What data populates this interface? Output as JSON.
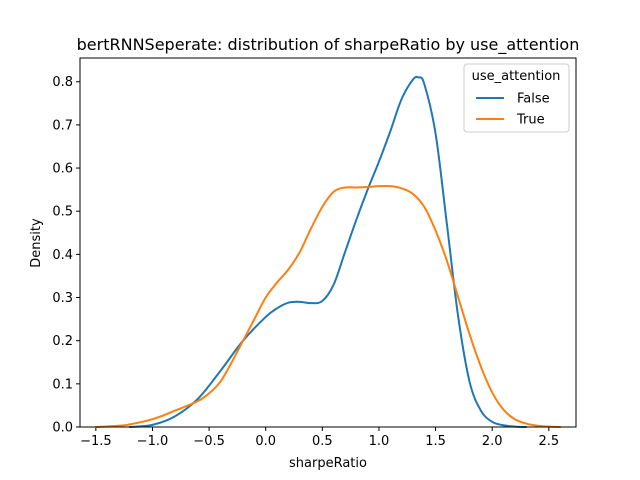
{
  "chart_data": {
    "type": "line",
    "title": "bertRNNSeperate: distribution of sharpeRatio by use_attention",
    "xlabel": "sharpeRatio",
    "ylabel": "Density",
    "xlim": [
      -1.64,
      2.74
    ],
    "ylim": [
      0,
      0.855
    ],
    "x_ticks": [
      -1.5,
      -1.0,
      -0.5,
      0.0,
      0.5,
      1.0,
      1.5,
      2.0,
      2.5
    ],
    "x_tick_labels": [
      "−1.5",
      "−1.0",
      "−0.5",
      "0.0",
      "0.5",
      "1.0",
      "1.5",
      "2.0",
      "2.5"
    ],
    "y_ticks": [
      0.0,
      0.1,
      0.2,
      0.3,
      0.4,
      0.5,
      0.6,
      0.7,
      0.8
    ],
    "y_tick_labels": [
      "0.0",
      "0.1",
      "0.2",
      "0.3",
      "0.4",
      "0.5",
      "0.6",
      "0.7",
      "0.8"
    ],
    "grid": false,
    "legend": {
      "title": "use_attention",
      "placement": "top-right"
    },
    "series": [
      {
        "name": "False",
        "color": "#1f77b4",
        "x": [
          -1.2,
          -1.0,
          -0.8,
          -0.6,
          -0.4,
          -0.2,
          0.0,
          0.1,
          0.2,
          0.3,
          0.4,
          0.5,
          0.6,
          0.7,
          0.8,
          0.9,
          1.0,
          1.1,
          1.2,
          1.3,
          1.35,
          1.4,
          1.5,
          1.6,
          1.7,
          1.8,
          1.9,
          2.0,
          2.1,
          2.2,
          2.3
        ],
        "y": [
          0.0,
          0.005,
          0.025,
          0.065,
          0.13,
          0.2,
          0.255,
          0.275,
          0.288,
          0.29,
          0.287,
          0.292,
          0.33,
          0.405,
          0.48,
          0.55,
          0.615,
          0.685,
          0.76,
          0.805,
          0.81,
          0.795,
          0.68,
          0.47,
          0.255,
          0.105,
          0.038,
          0.012,
          0.004,
          0.001,
          0.0
        ]
      },
      {
        "name": "True",
        "color": "#ff7f0e",
        "x": [
          -1.5,
          -1.3,
          -1.2,
          -1.0,
          -0.8,
          -0.6,
          -0.5,
          -0.4,
          -0.3,
          -0.2,
          -0.1,
          0.0,
          0.1,
          0.2,
          0.3,
          0.4,
          0.5,
          0.6,
          0.7,
          0.8,
          0.9,
          1.0,
          1.1,
          1.2,
          1.3,
          1.4,
          1.5,
          1.6,
          1.7,
          1.8,
          1.9,
          2.0,
          2.1,
          2.2,
          2.3,
          2.4,
          2.5,
          2.6
        ],
        "y": [
          0.0,
          0.003,
          0.006,
          0.018,
          0.038,
          0.06,
          0.078,
          0.105,
          0.15,
          0.2,
          0.25,
          0.3,
          0.335,
          0.365,
          0.405,
          0.46,
          0.51,
          0.545,
          0.555,
          0.555,
          0.556,
          0.558,
          0.558,
          0.553,
          0.54,
          0.51,
          0.455,
          0.385,
          0.3,
          0.215,
          0.14,
          0.08,
          0.04,
          0.018,
          0.008,
          0.003,
          0.001,
          0.0
        ]
      }
    ]
  }
}
